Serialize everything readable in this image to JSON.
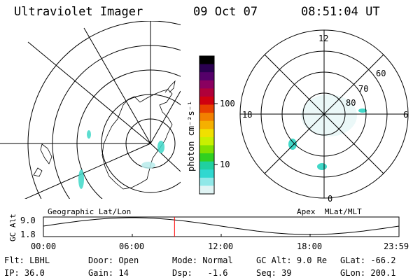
{
  "header": {
    "instrument": "Ultraviolet Imager",
    "date": "09 Oct 07",
    "time": "08:51:04 UT"
  },
  "colorbar": {
    "unit_label": "photon cm⁻²s⁻¹",
    "ticks": [
      "100",
      "10"
    ],
    "colors": [
      "#000000",
      "#2a0050",
      "#55006a",
      "#8a0060",
      "#b0003a",
      "#d00010",
      "#e84000",
      "#f28000",
      "#f5b000",
      "#f0e000",
      "#c8f000",
      "#80e000",
      "#30d020",
      "#20d0a0",
      "#30d8d0",
      "#90e8e8",
      "#e0f4f4"
    ]
  },
  "left_map": {
    "label": "Geographic Lat/Lon"
  },
  "right_map": {
    "label": "Apex  MLat/MLT",
    "mlt_labels": {
      "top": "12",
      "left": "18",
      "right": "6",
      "bottom": "0"
    },
    "lat_labels": [
      "60",
      "70",
      "80"
    ]
  },
  "altitude_plot": {
    "ylabel": "GC Alt",
    "yticks": [
      "9.0",
      "1.8"
    ],
    "xticks": [
      "00:00",
      "06:00",
      "12:00",
      "18:00",
      "23:59"
    ],
    "marker_time": "08:51",
    "marker_color": "#ff0000"
  },
  "info": {
    "row1": [
      {
        "label": "Flt:",
        "value": "LBHL"
      },
      {
        "label": "Door:",
        "value": "Open"
      },
      {
        "label": "Mode:",
        "value": "Normal"
      },
      {
        "label": "GC Alt:",
        "value": "9.0 Re"
      },
      {
        "label": "GLat:",
        "value": "-66.2"
      }
    ],
    "row2": [
      {
        "label": "IP:",
        "value": "36.0"
      },
      {
        "label": "Gain:",
        "value": "14"
      },
      {
        "label": "Dsp:",
        "value": "  -1.6"
      },
      {
        "label": "Seq:",
        "value": "39"
      },
      {
        "label": "GLon:",
        "value": "200.1"
      }
    ]
  }
}
